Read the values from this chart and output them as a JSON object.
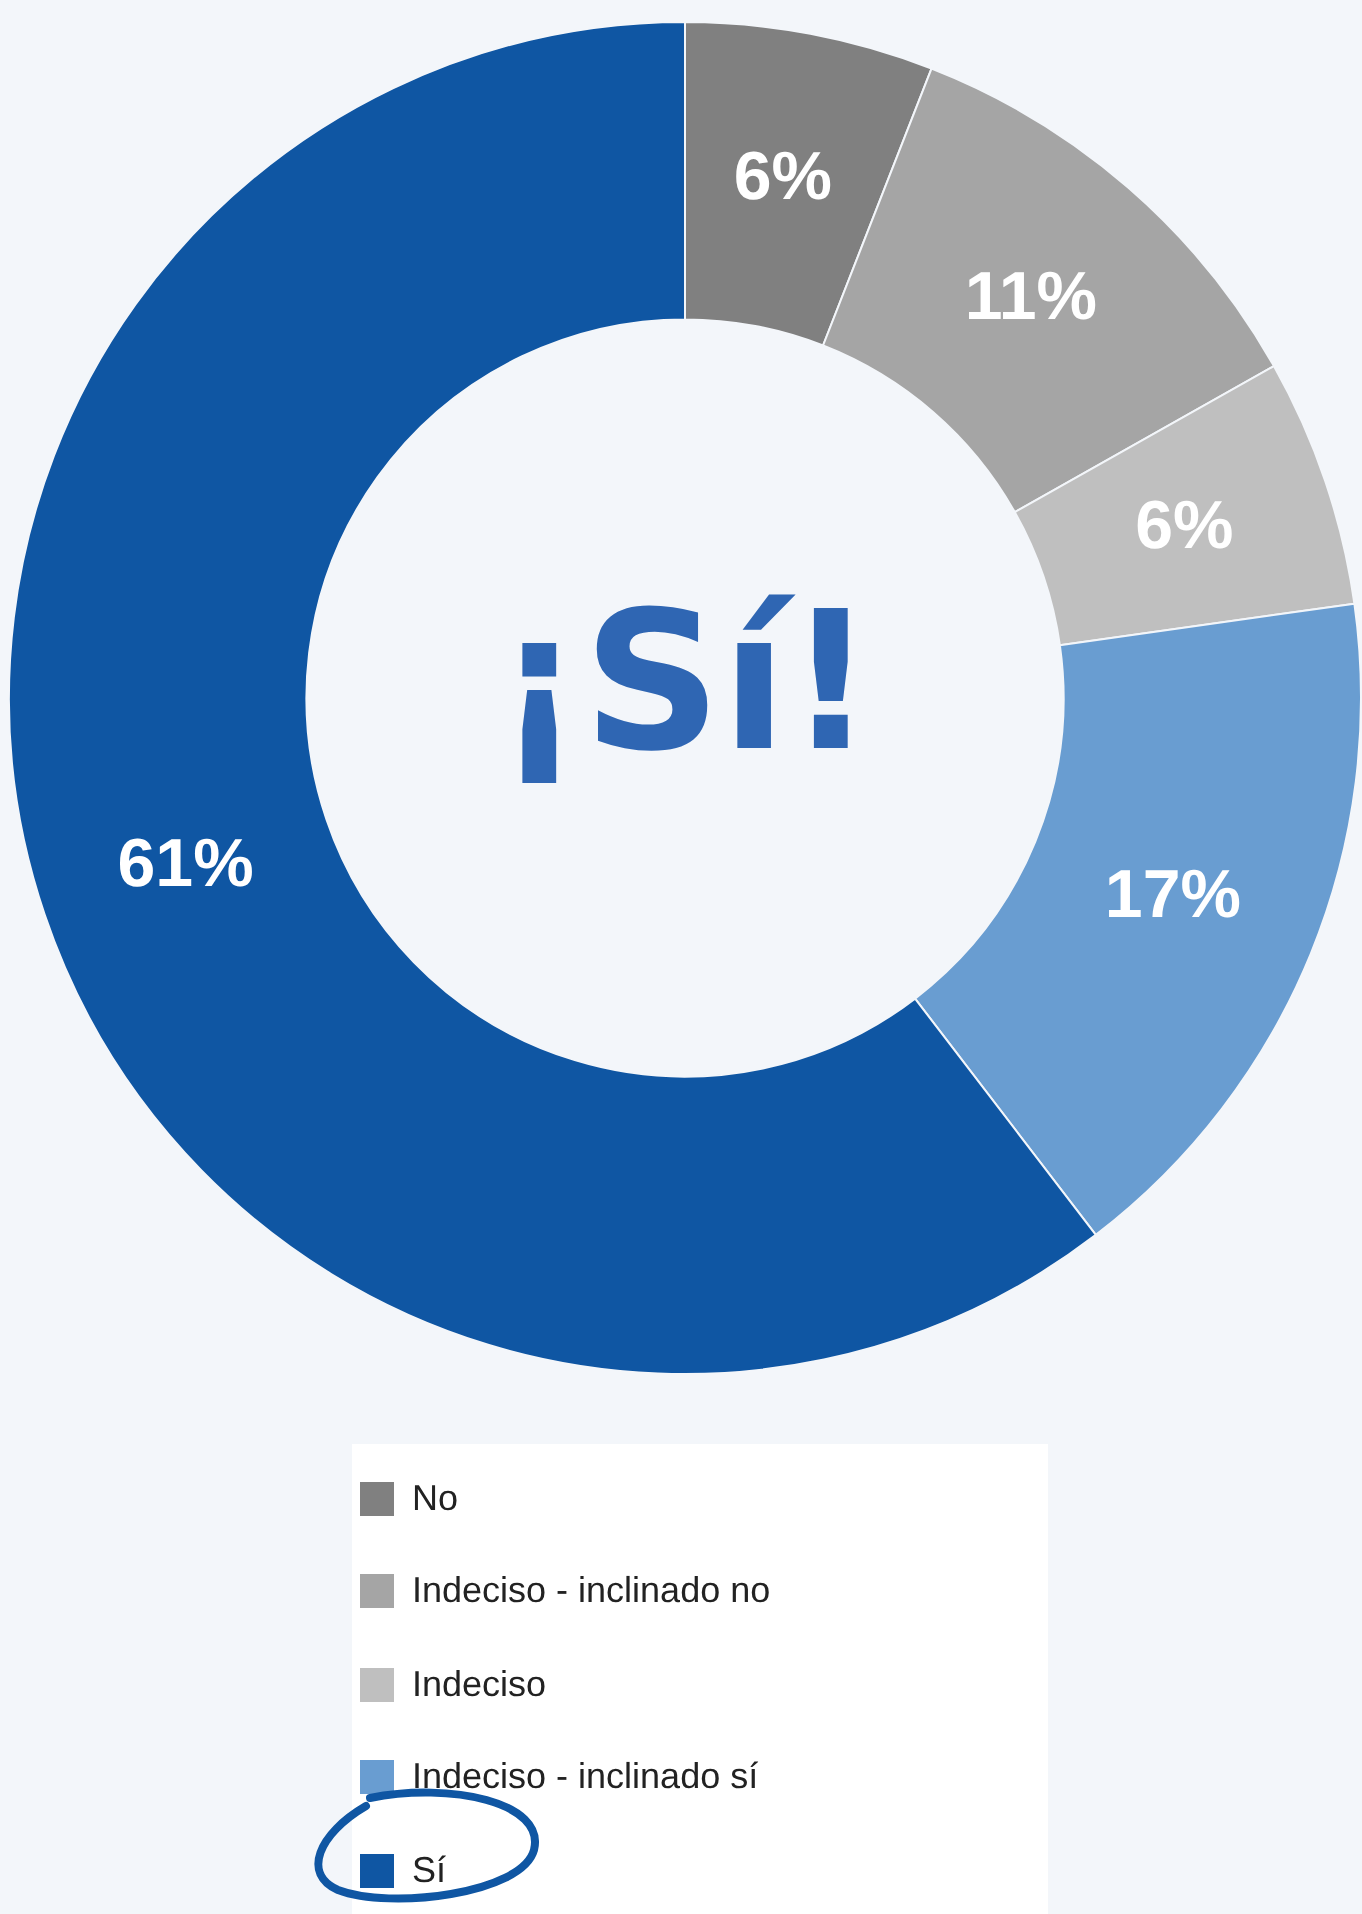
{
  "chart_data": {
    "type": "donut",
    "categories": [
      "No",
      "Indeciso - inclinado no",
      "Indeciso",
      "Indeciso - inclinado sí",
      "Sí"
    ],
    "values": [
      6,
      11,
      6,
      17,
      61
    ],
    "colors": [
      "#808080",
      "#a5a5a5",
      "#bfbfbf",
      "#699dd1",
      "#0f56a3"
    ],
    "value_labels": [
      "6%",
      "11%",
      "6%",
      "17%",
      "61%"
    ],
    "annotations": [
      "¡Sí!"
    ],
    "legend": "bottom"
  }
}
